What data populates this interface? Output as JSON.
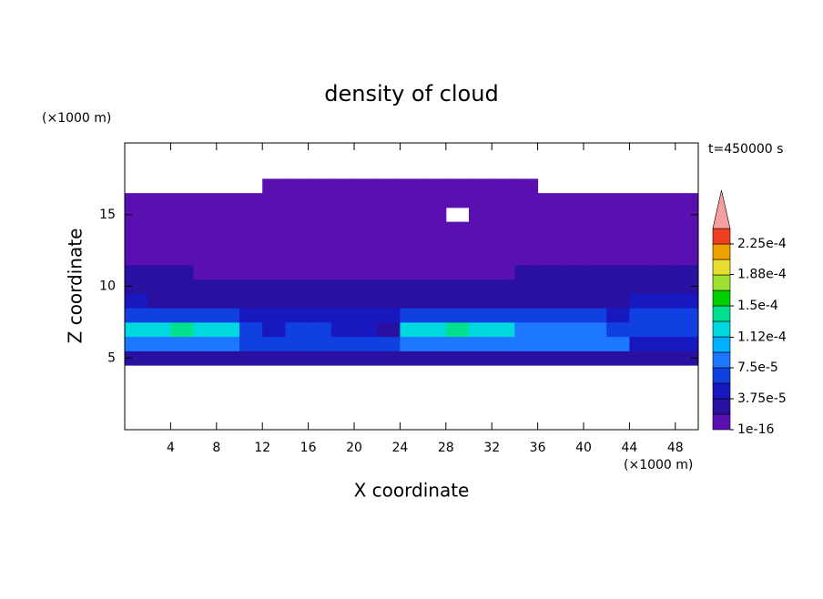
{
  "chart_data": {
    "type": "contour",
    "title": "density of cloud",
    "subtitle": "t=450000 s",
    "x_label": "X coordinate",
    "y_label": "Z coordinate",
    "x_unit": "(×1000 m)",
    "y_unit": "(×1000 m)",
    "xlim": [
      0,
      50
    ],
    "xticks": [
      4,
      8,
      12,
      16,
      20,
      24,
      28,
      32,
      36,
      40,
      44,
      48
    ],
    "ylim": [
      0,
      20
    ],
    "yticks": [
      5,
      10,
      15
    ],
    "x": [
      1,
      3,
      5,
      7,
      9,
      11,
      13,
      15,
      17,
      19,
      21,
      23,
      25,
      27,
      29,
      31,
      33,
      35,
      37,
      39,
      41,
      43,
      45,
      47,
      49
    ],
    "y": [
      5,
      6,
      7,
      8,
      9,
      10,
      11,
      12,
      13,
      14,
      15,
      16,
      17
    ],
    "z": [
      [
        2e-05,
        2e-05,
        2e-05,
        2e-05,
        2e-05,
        2e-05,
        2e-05,
        2e-05,
        2e-05,
        2e-05,
        2e-05,
        2e-05,
        2e-05,
        2e-05,
        2e-05,
        2e-05,
        2e-05,
        2e-05,
        2e-05,
        2e-05,
        2e-05,
        2e-05,
        2e-05,
        2e-05,
        2e-05
      ],
      [
        9e-05,
        9e-05,
        9e-05,
        9e-05,
        9e-05,
        6e-05,
        6e-05,
        6e-05,
        6e-05,
        6e-05,
        6e-05,
        6e-05,
        9e-05,
        9e-05,
        9e-05,
        9e-05,
        9e-05,
        9e-05,
        9e-05,
        9e-05,
        9e-05,
        9e-05,
        4e-05,
        4e-05,
        4e-05
      ],
      [
        0.00012,
        0.00012,
        0.00014,
        0.00012,
        0.00012,
        6e-05,
        4e-05,
        6e-05,
        6e-05,
        4e-05,
        4e-05,
        2e-05,
        0.00012,
        0.00012,
        0.00014,
        0.00012,
        0.00012,
        9e-05,
        9e-05,
        9e-05,
        9e-05,
        6e-05,
        6e-05,
        6e-05,
        6e-05
      ],
      [
        6e-05,
        6e-05,
        6e-05,
        6e-05,
        6e-05,
        4e-05,
        4e-05,
        4e-05,
        4e-05,
        4e-05,
        4e-05,
        4e-05,
        6e-05,
        6e-05,
        6e-05,
        6e-05,
        6e-05,
        6e-05,
        6e-05,
        6e-05,
        6e-05,
        4e-05,
        6e-05,
        6e-05,
        6e-05
      ],
      [
        4e-05,
        2e-05,
        2e-05,
        2e-05,
        2e-05,
        2e-05,
        2e-05,
        2e-05,
        2e-05,
        2e-05,
        2e-05,
        2e-05,
        2e-05,
        2e-05,
        2e-05,
        2e-05,
        2e-05,
        2e-05,
        2e-05,
        2e-05,
        2e-05,
        2e-05,
        4e-05,
        4e-05,
        4e-05
      ],
      [
        2e-05,
        2e-05,
        2e-05,
        2e-05,
        2e-05,
        2e-05,
        2e-05,
        2e-05,
        2e-05,
        2e-05,
        2e-05,
        2e-05,
        2e-05,
        2e-05,
        2e-05,
        2e-05,
        2e-05,
        2e-05,
        2e-05,
        2e-05,
        2e-05,
        2e-05,
        2e-05,
        2e-05,
        2e-05
      ],
      [
        2e-05,
        2e-05,
        2e-05,
        1e-16,
        1e-16,
        1e-16,
        1e-16,
        1e-16,
        1e-16,
        1e-16,
        1e-16,
        1e-16,
        1e-16,
        1e-16,
        1e-16,
        1e-16,
        1e-16,
        2e-05,
        2e-05,
        2e-05,
        2e-05,
        2e-05,
        2e-05,
        2e-05,
        2e-05
      ],
      [
        1e-16,
        1e-16,
        1e-16,
        1e-16,
        1e-16,
        1e-16,
        1e-16,
        1e-16,
        1e-16,
        1e-16,
        1e-16,
        1e-16,
        1e-16,
        1e-16,
        1e-16,
        1e-16,
        1e-16,
        1e-16,
        1e-16,
        1e-16,
        1e-16,
        1e-16,
        1e-16,
        1e-16,
        1e-16
      ],
      [
        1e-16,
        1e-16,
        1e-16,
        1e-16,
        1e-16,
        1e-16,
        1e-16,
        1e-16,
        1e-16,
        1e-16,
        1e-16,
        1e-16,
        1e-16,
        1e-16,
        1e-16,
        1e-16,
        1e-16,
        1e-16,
        1e-16,
        1e-16,
        1e-16,
        1e-16,
        1e-16,
        1e-16,
        1e-16
      ],
      [
        1e-16,
        1e-16,
        1e-16,
        1e-16,
        1e-16,
        1e-16,
        1e-16,
        1e-16,
        1e-16,
        1e-16,
        1e-16,
        1e-16,
        1e-16,
        1e-16,
        1e-16,
        1e-16,
        1e-16,
        1e-16,
        1e-16,
        1e-16,
        1e-16,
        1e-16,
        1e-16,
        1e-16,
        1e-16
      ],
      [
        1e-16,
        1e-16,
        1e-16,
        1e-16,
        1e-16,
        1e-16,
        1e-16,
        1e-16,
        1e-16,
        1e-16,
        1e-16,
        1e-16,
        1e-16,
        1e-16,
        null,
        1e-16,
        1e-16,
        1e-16,
        1e-16,
        1e-16,
        1e-16,
        1e-16,
        1e-16,
        1e-16,
        1e-16
      ],
      [
        1e-16,
        1e-16,
        1e-16,
        1e-16,
        1e-16,
        1e-16,
        1e-16,
        1e-16,
        1e-16,
        1e-16,
        1e-16,
        1e-16,
        1e-16,
        1e-16,
        1e-16,
        1e-16,
        1e-16,
        1e-16,
        1e-16,
        1e-16,
        1e-16,
        1e-16,
        1e-16,
        1e-16,
        1e-16
      ],
      [
        null,
        null,
        null,
        null,
        null,
        null,
        1e-16,
        1e-16,
        1e-16,
        1e-16,
        1e-16,
        1e-16,
        1e-16,
        1e-16,
        1e-16,
        1e-16,
        1e-16,
        1e-16,
        null,
        null,
        null,
        null,
        null,
        null,
        null
      ]
    ],
    "colorbar_ticks": [
      1e-16,
      {
        "value": 3.75e-05,
        "label": "3.75e-5"
      },
      {
        "value": 7.5e-05,
        "label": "7.5e-5"
      },
      {
        "value": 0.000112,
        "label": "1.12e-4"
      },
      {
        "value": 0.00015,
        "label": "1.5e-4"
      },
      {
        "value": 0.000188,
        "label": "1.88e-4"
      },
      {
        "value": 0.000225,
        "label": "2.25e-4"
      }
    ],
    "colors": [
      "#5a10b0",
      "#2a10a0",
      "#1818c0",
      "#1040e0",
      "#1e78ff",
      "#00b0ff",
      "#00d8e0",
      "#00e090",
      "#00d000",
      "#a0e030",
      "#e8dc30",
      "#f0a000",
      "#f04020"
    ],
    "extend_color": "#f4a0a0"
  }
}
